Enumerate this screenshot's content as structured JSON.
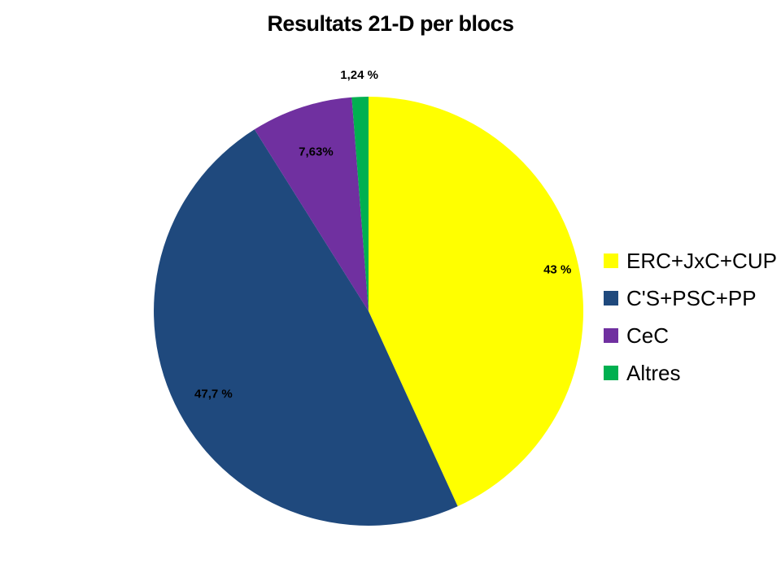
{
  "chart_data": {
    "type": "pie",
    "title": "Resultats 21-D per blocs",
    "categories": [
      "ERC+JxC+CUP",
      "C'S+PSC+PP",
      "CeC",
      "Altres"
    ],
    "values": [
      43,
      47.7,
      7.63,
      1.24
    ],
    "value_labels": [
      "43 %",
      "47,7 %",
      "7,63%",
      "1,24 %"
    ],
    "colors": [
      "#FFFF00",
      "#1F497D",
      "#7030A0",
      "#00B050"
    ],
    "legend_position": "right",
    "start_angle": "12 o'clock",
    "direction": "clockwise"
  }
}
